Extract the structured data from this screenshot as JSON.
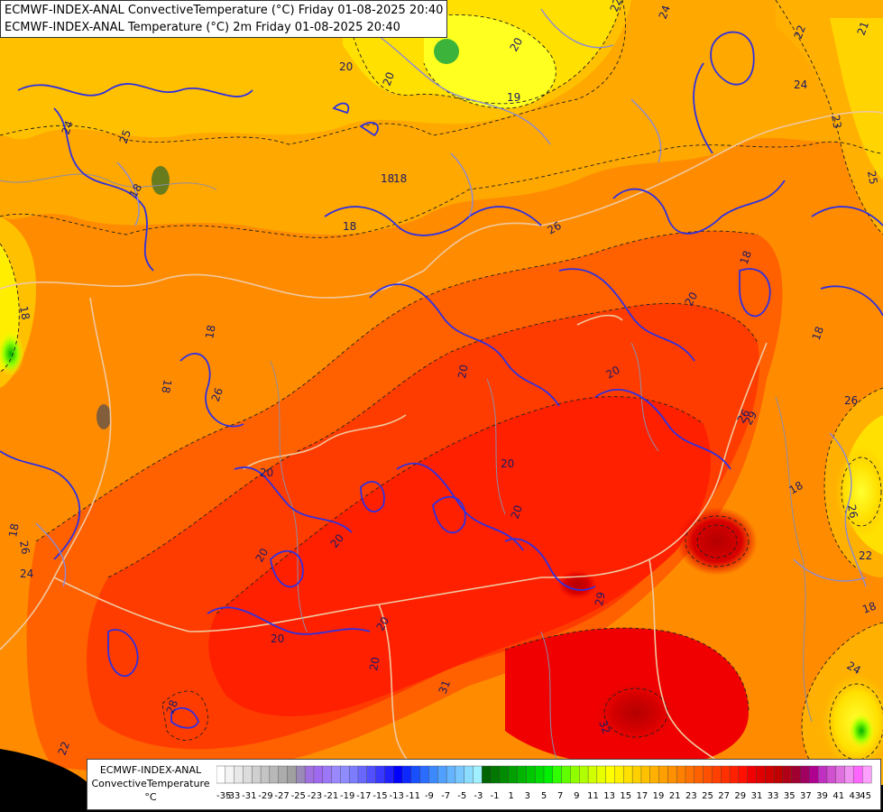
{
  "title": {
    "line1": "ECMWF-INDEX-ANAL ConvectiveTemperature (°C) Friday 01-08-2025 20:40",
    "line2": "ECMWF-INDEX-ANAL Temperature (°C) 2m Friday 01-08-2025 20:40"
  },
  "legend": {
    "model": "ECMWF-INDEX-ANAL",
    "parameter": "ConvectiveTemperature",
    "unit": "°C",
    "tick_labels": [
      "-35",
      "-33",
      "-31",
      "-29",
      "-27",
      "-25",
      "-23",
      "-21",
      "-19",
      "-17",
      "-15",
      "-13",
      "-11",
      "-9",
      "-7",
      "-5",
      "-3",
      "-1",
      "1",
      "3",
      "5",
      "7",
      "9",
      "11",
      "13",
      "15",
      "17",
      "19",
      "21",
      "23",
      "25",
      "27",
      "29",
      "31",
      "33",
      "35",
      "37",
      "39",
      "41",
      "43",
      "45"
    ],
    "colors": [
      "#ffffff",
      "#f4f4f4",
      "#e8e8e8",
      "#dcdcdc",
      "#d0d0d0",
      "#c4c4c4",
      "#b8b8b8",
      "#acacac",
      "#a0a0a0",
      "#9a8ab8",
      "#a070e0",
      "#9f6af0",
      "#9c78f8",
      "#9a88ff",
      "#8f8cff",
      "#7c7cff",
      "#6868ff",
      "#5050ff",
      "#3838ff",
      "#2020ff",
      "#0000ff",
      "#0c28ff",
      "#1850ff",
      "#2a6cff",
      "#3c88ff",
      "#50a0ff",
      "#64b4ff",
      "#78c8ff",
      "#8cdcff",
      "#a0f0ff",
      "#006400",
      "#007800",
      "#008c00",
      "#00a000",
      "#00b400",
      "#00c800",
      "#00dc00",
      "#00f000",
      "#30ff00",
      "#60ff00",
      "#90ff00",
      "#b0ff00",
      "#d0ff00",
      "#e8ff00",
      "#ffff00",
      "#fff000",
      "#ffe000",
      "#ffd000",
      "#ffc000",
      "#ffb000",
      "#ffa000",
      "#ff9000",
      "#ff8000",
      "#ff7000",
      "#ff6000",
      "#ff5000",
      "#ff4000",
      "#ff3000",
      "#ff2000",
      "#ff1000",
      "#f00000",
      "#e00000",
      "#d00000",
      "#c00000",
      "#b00018",
      "#a00030",
      "#a00060",
      "#b00090",
      "#c030c0",
      "#d050d0",
      "#e070e0",
      "#f090f0",
      "#ff66ff",
      "#ffa0ff"
    ]
  },
  "contour_labels": [
    {
      "text": "20"
    },
    {
      "text": "20"
    },
    {
      "text": "19"
    },
    {
      "text": "20"
    },
    {
      "text": "22"
    },
    {
      "text": "24"
    },
    {
      "text": "22"
    },
    {
      "text": "21"
    },
    {
      "text": "24"
    },
    {
      "text": "23"
    },
    {
      "text": "25"
    },
    {
      "text": "25"
    },
    {
      "text": "24"
    },
    {
      "text": "18"
    },
    {
      "text": "18"
    },
    {
      "text": "18"
    },
    {
      "text": "26"
    },
    {
      "text": "18"
    },
    {
      "text": "18"
    },
    {
      "text": "20"
    },
    {
      "text": "20"
    },
    {
      "text": "18"
    },
    {
      "text": "18"
    },
    {
      "text": "26"
    },
    {
      "text": "20"
    },
    {
      "text": "20"
    },
    {
      "text": "20"
    },
    {
      "text": "20"
    },
    {
      "text": "20"
    },
    {
      "text": "20"
    },
    {
      "text": "26"
    },
    {
      "text": "26"
    },
    {
      "text": "22"
    },
    {
      "text": "18"
    },
    {
      "text": "18"
    },
    {
      "text": "26"
    },
    {
      "text": "18"
    },
    {
      "text": "24"
    },
    {
      "text": "20"
    },
    {
      "text": "20"
    },
    {
      "text": "20"
    },
    {
      "text": "29"
    },
    {
      "text": "28"
    },
    {
      "text": "31"
    },
    {
      "text": "32"
    },
    {
      "text": "29"
    },
    {
      "text": "24"
    },
    {
      "text": "22"
    },
    {
      "text": "18"
    },
    {
      "text": "26"
    },
    {
      "text": "18"
    }
  ]
}
